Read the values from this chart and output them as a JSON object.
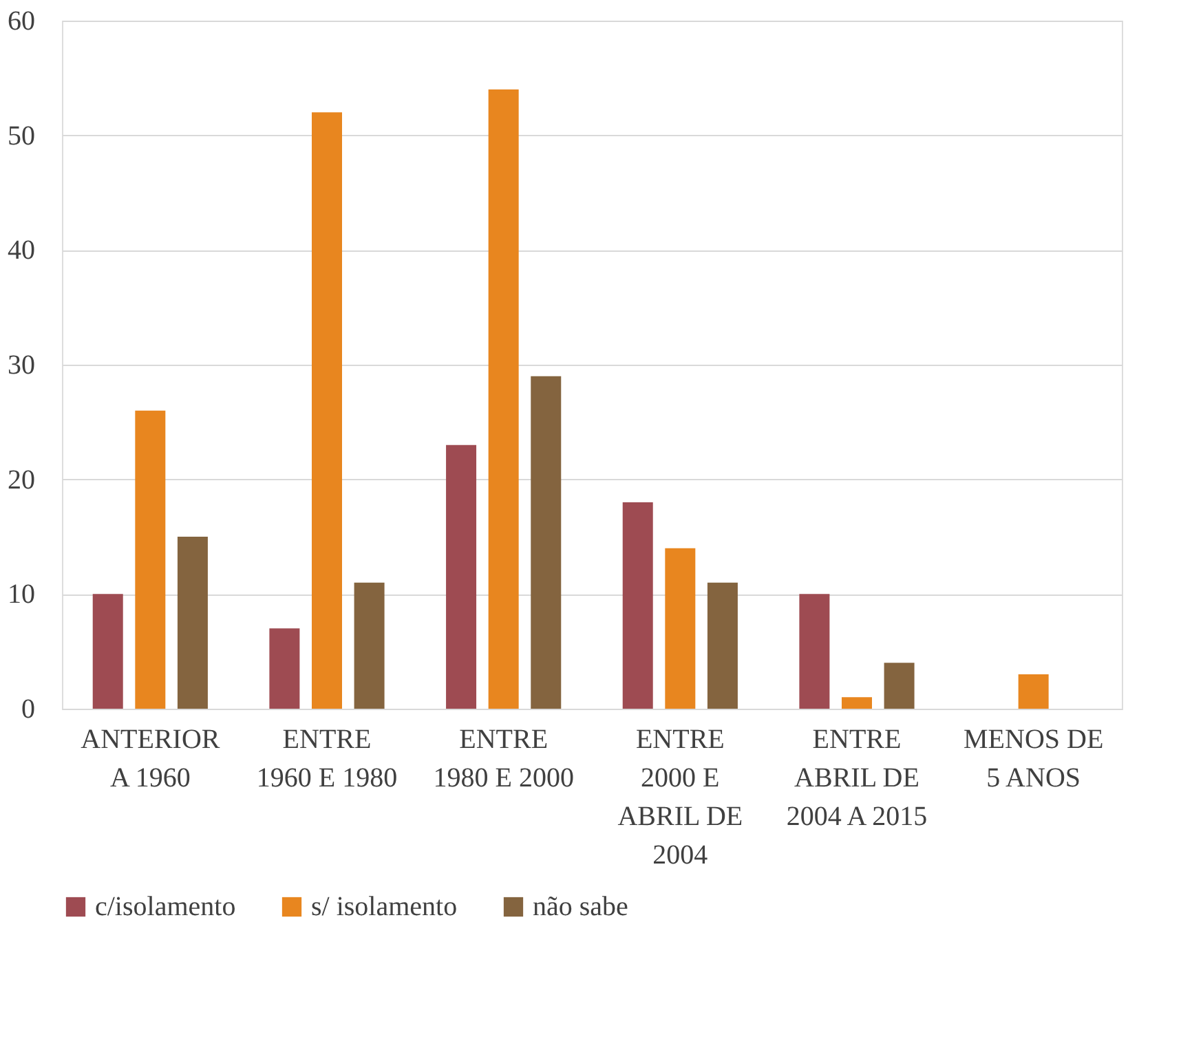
{
  "chart_data": {
    "type": "bar",
    "categories": [
      "ANTERIOR A 1960",
      "ENTRE 1960 E 1980",
      "ENTRE 1980 E 2000",
      "ENTRE 2000 E ABRIL DE 2004",
      "ENTRE ABRIL DE 2004 A 2015",
      "MENOS DE 5 ANOS"
    ],
    "series": [
      {
        "name": "c/isolamento",
        "color": "#9e4b52",
        "values": [
          10,
          7,
          23,
          18,
          10,
          0
        ]
      },
      {
        "name": "s/ isolamento",
        "color": "#e8861f",
        "values": [
          26,
          52,
          54,
          14,
          1,
          3
        ]
      },
      {
        "name": "não sabe",
        "color": "#84643f",
        "values": [
          15,
          11,
          29,
          11,
          4,
          0
        ]
      }
    ],
    "ylim": [
      0,
      60
    ],
    "yticks": [
      0,
      10,
      20,
      30,
      40,
      50,
      60
    ],
    "grid": "y",
    "legend": "bottom"
  }
}
